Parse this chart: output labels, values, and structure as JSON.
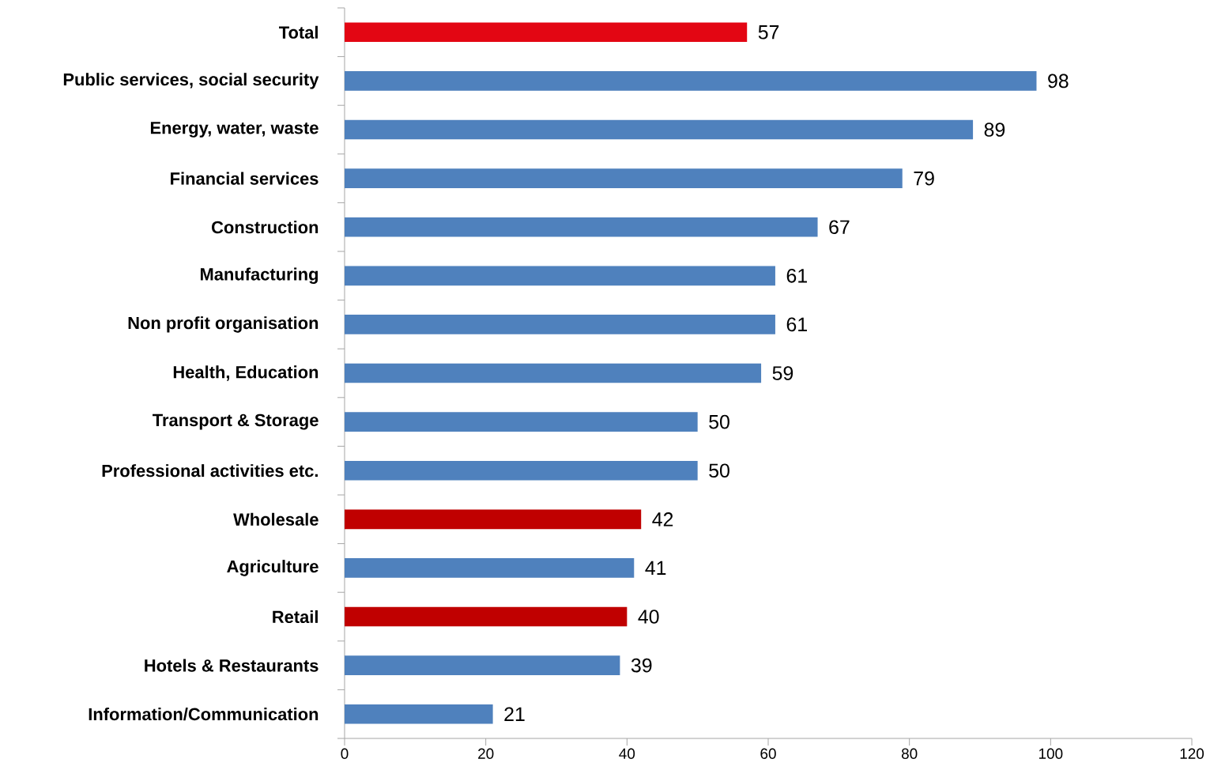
{
  "chart_data": {
    "type": "bar",
    "orientation": "horizontal",
    "data_labels": true,
    "categories": [
      "Total",
      "Public services, social security",
      "Energy, water, waste",
      "Financial services",
      "Construction",
      "Manufacturing",
      "Non profit organisation",
      "Health, Education",
      "Transport & Storage",
      "Professional activities etc.",
      "Wholesale",
      "Agriculture",
      "Retail",
      "Hotels & Restaurants",
      "Information/Communication"
    ],
    "values": [
      57,
      98,
      89,
      79,
      67,
      61,
      61,
      59,
      50,
      50,
      42,
      41,
      40,
      39,
      21
    ],
    "colors": [
      "#e30613",
      "#4f81bd",
      "#4f81bd",
      "#4f81bd",
      "#4f81bd",
      "#4f81bd",
      "#4f81bd",
      "#4f81bd",
      "#4f81bd",
      "#4f81bd",
      "#c00000",
      "#4f81bd",
      "#c00000",
      "#4f81bd",
      "#4f81bd"
    ],
    "xlim": [
      0,
      120
    ],
    "xticks": [
      0,
      20,
      40,
      60,
      80,
      100,
      120
    ],
    "grid": false
  }
}
